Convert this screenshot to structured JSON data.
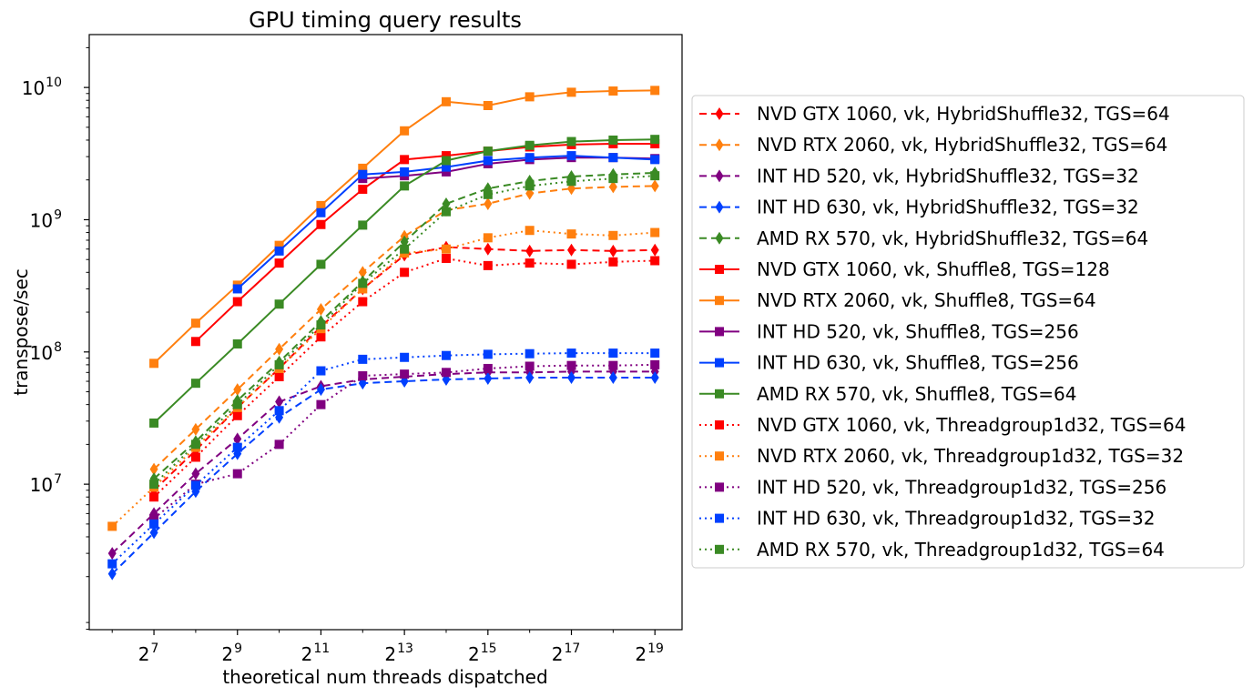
{
  "chart_data": {
    "type": "line",
    "title": "GPU timing query results",
    "xlabel": "theoretical num threads dispatched",
    "ylabel": "transpose/sec",
    "xscale": "log2",
    "yscale": "log10",
    "xlim_log2": [
      5.45,
      19.65
    ],
    "ylim_log10": [
      5.9,
      10.4
    ],
    "x_ticks": [
      {
        "base": "2",
        "exp": "7",
        "log2": 7
      },
      {
        "base": "2",
        "exp": "9",
        "log2": 9
      },
      {
        "base": "2",
        "exp": "11",
        "log2": 11
      },
      {
        "base": "2",
        "exp": "13",
        "log2": 13
      },
      {
        "base": "2",
        "exp": "15",
        "log2": 15
      },
      {
        "base": "2",
        "exp": "17",
        "log2": 17
      },
      {
        "base": "2",
        "exp": "19",
        "log2": 19
      }
    ],
    "y_ticks": [
      {
        "base": "10",
        "exp": "7",
        "log10": 7
      },
      {
        "base": "10",
        "exp": "8",
        "log10": 8
      },
      {
        "base": "10",
        "exp": "9",
        "log10": 9
      },
      {
        "base": "10",
        "exp": "10",
        "log10": 10
      }
    ],
    "legend_position": "outside-right",
    "series": [
      {
        "name": "NVD GTX 1060, vk, HybridShuffle32, TGS=64",
        "color": "#ff0000",
        "dash": "dashed",
        "marker": "diamond",
        "x_log2": [
          7,
          8,
          9,
          10,
          11,
          12,
          13,
          14,
          15,
          16,
          17,
          18,
          19
        ],
        "values": [
          9000000,
          18000000,
          38000000,
          75000000,
          155000000,
          300000000,
          540000000,
          620000000,
          600000000,
          580000000,
          590000000,
          580000000,
          590000000
        ]
      },
      {
        "name": "NVD RTX 2060, vk, HybridShuffle32, TGS=64",
        "color": "#ff7f0e",
        "dash": "dashed",
        "marker": "diamond",
        "x_log2": [
          7,
          8,
          9,
          10,
          11,
          12,
          13,
          14,
          15,
          16,
          17,
          18,
          19
        ],
        "values": [
          13000000,
          26000000,
          52000000,
          105000000,
          210000000,
          400000000,
          750000000,
          1180000000,
          1320000000,
          1580000000,
          1720000000,
          1770000000,
          1800000000
        ]
      },
      {
        "name": "INT HD 520, vk, HybridShuffle32, TGS=32",
        "color": "#800080",
        "dash": "dashed",
        "marker": "diamond",
        "x_log2": [
          6,
          7,
          8,
          9,
          10,
          11,
          12,
          13,
          14,
          15,
          16,
          17,
          18,
          19
        ],
        "values": [
          3000000,
          6000000,
          12000000,
          22000000,
          42000000,
          55000000,
          62000000,
          65000000,
          68000000,
          70000000,
          70000000,
          71000000,
          71000000,
          71000000
        ]
      },
      {
        "name": "INT HD 630, vk, HybridShuffle32, TGS=32",
        "color": "#0040ff",
        "dash": "dashed",
        "marker": "diamond",
        "x_log2": [
          6,
          7,
          8,
          9,
          10,
          11,
          12,
          13,
          14,
          15,
          16,
          17,
          18,
          19
        ],
        "values": [
          2100000,
          4300000,
          8800000,
          17000000,
          32000000,
          52000000,
          58000000,
          60000000,
          62000000,
          63000000,
          64000000,
          64000000,
          64000000,
          64000000
        ]
      },
      {
        "name": "AMD RX 570, vk, HybridShuffle32, TGS=64",
        "color": "#3a8a24",
        "dash": "dashed",
        "marker": "diamond",
        "x_log2": [
          7,
          8,
          9,
          10,
          11,
          12,
          13,
          14,
          15,
          16,
          17,
          18,
          19
        ],
        "values": [
          11000000,
          21000000,
          43000000,
          84000000,
          170000000,
          340000000,
          680000000,
          1320000000,
          1720000000,
          1960000000,
          2120000000,
          2200000000,
          2260000000
        ]
      },
      {
        "name": "NVD GTX 1060, vk, Shuffle8, TGS=128",
        "color": "#ff0000",
        "dash": "solid",
        "marker": "square",
        "x_log2": [
          8,
          9,
          10,
          11,
          12,
          13,
          14,
          15,
          16,
          17,
          18,
          19
        ],
        "values": [
          120000000,
          240000000,
          470000000,
          920000000,
          1700000000,
          2850000000,
          3050000000,
          3300000000,
          3550000000,
          3700000000,
          3750000000,
          3750000000
        ]
      },
      {
        "name": "NVD RTX 2060, vk, Shuffle8, TGS=64",
        "color": "#ff7f0e",
        "dash": "solid",
        "marker": "square",
        "x_log2": [
          7,
          8,
          9,
          10,
          11,
          12,
          13,
          14,
          15,
          16,
          17,
          18,
          19
        ],
        "values": [
          82000000,
          165000000,
          320000000,
          640000000,
          1280000000,
          2450000000,
          4700000000,
          7800000000,
          7300000000,
          8500000000,
          9200000000,
          9400000000,
          9500000000
        ]
      },
      {
        "name": "INT HD 520, vk, Shuffle8, TGS=256",
        "color": "#800080",
        "dash": "solid",
        "marker": "square",
        "x_log2": [
          12,
          13,
          14,
          15,
          16,
          17,
          18,
          19
        ],
        "values": [
          2050000000,
          2150000000,
          2300000000,
          2650000000,
          2850000000,
          2950000000,
          2950000000,
          2900000000
        ]
      },
      {
        "name": "INT HD 630, vk, Shuffle8, TGS=256",
        "color": "#0040ff",
        "dash": "solid",
        "marker": "square",
        "x_log2": [
          9,
          10,
          11,
          12,
          13,
          14,
          15,
          16,
          17,
          18,
          19
        ],
        "values": [
          300000000,
          580000000,
          1130000000,
          2200000000,
          2300000000,
          2500000000,
          2800000000,
          2950000000,
          3050000000,
          2950000000,
          2850000000
        ]
      },
      {
        "name": "AMD RX 570, vk, Shuffle8, TGS=64",
        "color": "#3a8a24",
        "dash": "solid",
        "marker": "square",
        "x_log2": [
          7,
          8,
          9,
          10,
          11,
          12,
          13,
          14,
          15,
          16,
          17,
          18,
          19
        ],
        "values": [
          29000000,
          58000000,
          115000000,
          230000000,
          460000000,
          910000000,
          1800000000,
          2800000000,
          3300000000,
          3650000000,
          3900000000,
          4000000000,
          4050000000
        ]
      },
      {
        "name": "NVD GTX 1060, vk, Threadgroup1d32, TGS=64",
        "color": "#ff0000",
        "dash": "dotted",
        "marker": "square",
        "x_log2": [
          7,
          8,
          9,
          10,
          11,
          12,
          13,
          14,
          15,
          16,
          17,
          18,
          19
        ],
        "values": [
          8000000,
          16000000,
          33000000,
          65000000,
          130000000,
          240000000,
          400000000,
          510000000,
          450000000,
          470000000,
          460000000,
          480000000,
          490000000
        ]
      },
      {
        "name": "NVD RTX 2060, vk, Threadgroup1d32, TGS=32",
        "color": "#ff7f0e",
        "dash": "dotted",
        "marker": "square",
        "x_log2": [
          6,
          7,
          8,
          9,
          10,
          11,
          12,
          13,
          14,
          15,
          16,
          17,
          18,
          19
        ],
        "values": [
          4800000,
          9500000,
          19000000,
          38000000,
          75000000,
          150000000,
          300000000,
          560000000,
          600000000,
          730000000,
          830000000,
          780000000,
          760000000,
          800000000
        ]
      },
      {
        "name": "INT HD 520, vk, Threadgroup1d32, TGS=256",
        "color": "#800080",
        "dash": "dotted",
        "marker": "square",
        "x_log2": [
          7,
          8,
          9,
          10,
          11,
          12,
          13,
          14,
          15,
          16,
          17,
          18,
          19
        ],
        "values": [
          5500000,
          10000000,
          12000000,
          20000000,
          40000000,
          66000000,
          68000000,
          70000000,
          75000000,
          78000000,
          79000000,
          79000000,
          80000000
        ]
      },
      {
        "name": "INT HD 630, vk, Threadgroup1d32, TGS=32",
        "color": "#0040ff",
        "dash": "dotted",
        "marker": "square",
        "x_log2": [
          6,
          7,
          8,
          9,
          10,
          11,
          12,
          13,
          14,
          15,
          16,
          17,
          18,
          19
        ],
        "values": [
          2500000,
          5000000,
          9800000,
          19000000,
          36000000,
          72000000,
          88000000,
          91000000,
          94000000,
          96000000,
          97000000,
          98000000,
          98000000,
          98000000
        ]
      },
      {
        "name": "AMD RX 570, vk, Threadgroup1d32, TGS=64",
        "color": "#3a8a24",
        "dash": "dotted",
        "marker": "square",
        "x_log2": [
          7,
          8,
          9,
          10,
          11,
          12,
          13,
          14,
          15,
          16,
          17,
          18,
          19
        ],
        "values": [
          10000000,
          20000000,
          40000000,
          80000000,
          160000000,
          330000000,
          600000000,
          1150000000,
          1550000000,
          1800000000,
          1950000000,
          2050000000,
          2150000000
        ]
      }
    ]
  }
}
